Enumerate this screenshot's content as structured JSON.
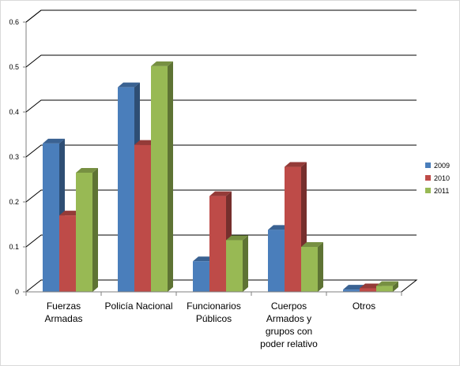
{
  "chart_data": {
    "type": "bar",
    "title": "",
    "xlabel": "",
    "ylabel": "",
    "ylim": [
      0,
      0.6
    ],
    "yticks": [
      "0",
      "0.1",
      "0.2",
      "0.3",
      "0.4",
      "0.5",
      "0.6"
    ],
    "categories": [
      [
        "Fuerzas",
        "Armadas"
      ],
      [
        "Policía Nacional"
      ],
      [
        "Funcionarios",
        "Públicos"
      ],
      [
        "Cuerpos",
        "Armados y",
        "grupos con",
        "poder relativo"
      ],
      [
        "Otros"
      ]
    ],
    "series": [
      {
        "name": "2009",
        "color": "#4a7ebb",
        "values": [
          0.33,
          0.455,
          0.068,
          0.138,
          0.005
        ]
      },
      {
        "name": "2010",
        "color": "#be4b48",
        "values": [
          0.17,
          0.327,
          0.213,
          0.278,
          0.008
        ]
      },
      {
        "name": "2011",
        "color": "#98b954",
        "values": [
          0.265,
          0.502,
          0.115,
          0.1,
          0.013
        ]
      }
    ],
    "grid": true,
    "legend_position": "right",
    "style": "3d-clustered-columns"
  }
}
